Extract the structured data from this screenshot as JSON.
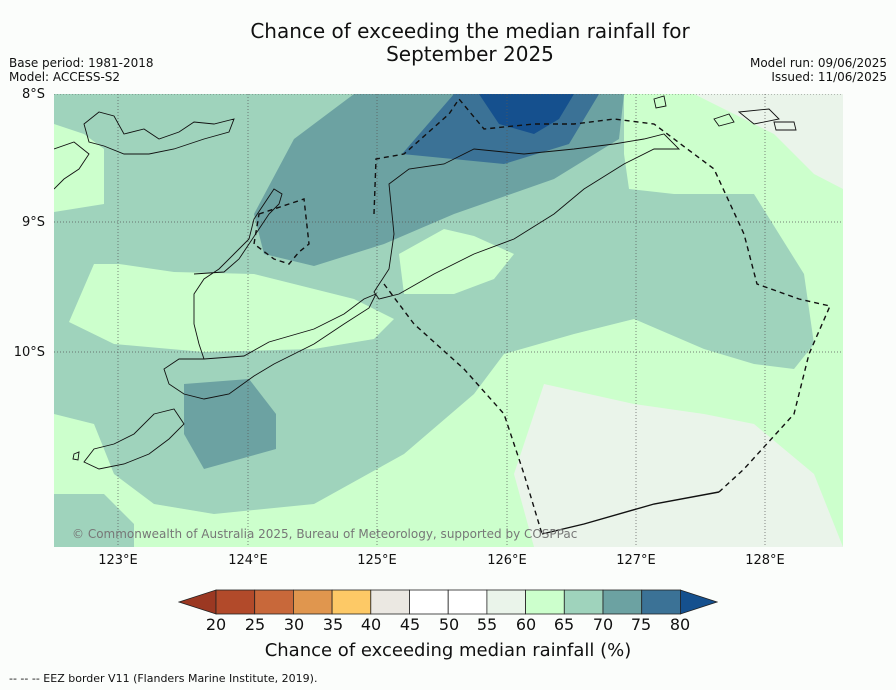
{
  "title_line1": "Chance of exceeding the median rainfall for",
  "title_line2": "September 2025",
  "meta_left": {
    "base_period": "Base period: 1981-2018",
    "model": "Model: ACCESS-S2"
  },
  "meta_right": {
    "model_run": "Model run: 09/06/2025",
    "issued": "Issued: 11/06/2025"
  },
  "lat_labels": [
    "8°S",
    "9°S",
    "10°S"
  ],
  "lon_labels": [
    "123°E",
    "124°E",
    "125°E",
    "126°E",
    "127°E",
    "128°E"
  ],
  "copyright": "© Commonwealth of Australia 2025, Bureau of Meteorology, supported by COSPPac",
  "colorbar": {
    "title": "Chance of exceeding median rainfall (%)",
    "ticks": [
      "20",
      "25",
      "30",
      "35",
      "40",
      "45",
      "50",
      "55",
      "60",
      "65",
      "70",
      "75",
      "80"
    ],
    "colors": [
      "#b24a2a",
      "#c8683a",
      "#e0964e",
      "#fdc966",
      "#ebe8e2",
      "#ffffff",
      "#ffffff",
      "#eaf4ea",
      "#ccffcc",
      "#9fd3bc",
      "#6ca2a2",
      "#3b7296"
    ],
    "low_color": "#9b3822",
    "high_color": "#15508e"
  },
  "footer": "--  --  -- EEZ border V11 (Flanders Marine Institute, 2019)."
}
